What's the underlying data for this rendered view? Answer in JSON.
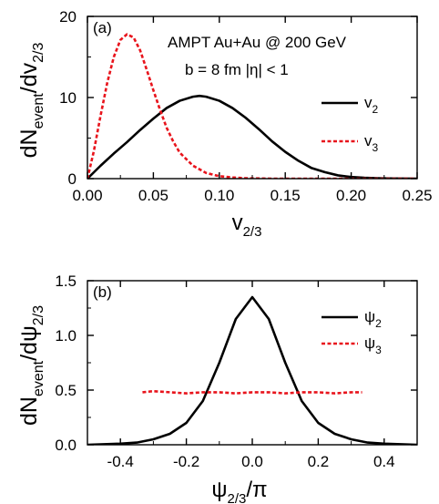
{
  "chart_data": [
    {
      "panel_label": "(a)",
      "type": "line",
      "annotations": [
        "AMPT  Au+Au @ 200 GeV",
        "b = 8 fm  |η| < 1"
      ],
      "xlabel": {
        "main": "v",
        "sub": "2/3"
      },
      "ylabel": {
        "main": "dN",
        "sub1": "event",
        "mid": "/dv",
        "sub2": "2/3"
      },
      "xlim": [
        0,
        0.25
      ],
      "ylim": [
        0,
        20
      ],
      "xticks": [
        0,
        0.05,
        0.1,
        0.15,
        0.2,
        0.25
      ],
      "xtick_labels": [
        "0.00",
        "0.05",
        "0.10",
        "0.15",
        "0.20",
        "0.25"
      ],
      "yticks": [
        0,
        10,
        20
      ],
      "ytick_labels": [
        "0",
        "10",
        "20"
      ],
      "legend": [
        {
          "main": "v",
          "sub": "2",
          "style": "solid",
          "color": "#000000"
        },
        {
          "main": "v",
          "sub": "3",
          "style": "dashed",
          "color": "#e8141c"
        }
      ],
      "series": [
        {
          "style": "solid",
          "color": "#000000",
          "x": [
            0,
            0.005,
            0.01,
            0.02,
            0.03,
            0.04,
            0.05,
            0.06,
            0.07,
            0.08,
            0.085,
            0.09,
            0.1,
            0.11,
            0.12,
            0.13,
            0.14,
            0.15,
            0.16,
            0.17,
            0.18,
            0.19,
            0.2,
            0.21,
            0.22,
            0.23,
            0.25
          ],
          "y": [
            0,
            0.8,
            1.6,
            3.1,
            4.5,
            6.0,
            7.4,
            8.7,
            9.6,
            10.1,
            10.2,
            10.1,
            9.6,
            8.7,
            7.5,
            6.1,
            4.6,
            3.3,
            2.2,
            1.3,
            0.8,
            0.4,
            0.2,
            0.1,
            0.05,
            0.02,
            0.0
          ]
        },
        {
          "style": "dashed",
          "color": "#e8141c",
          "x": [
            0,
            0.005,
            0.01,
            0.015,
            0.02,
            0.025,
            0.03,
            0.035,
            0.04,
            0.045,
            0.05,
            0.055,
            0.06,
            0.065,
            0.07,
            0.08,
            0.09,
            0.1,
            0.11,
            0.12,
            0.14,
            0.16,
            0.2,
            0.25
          ],
          "y": [
            0,
            3.5,
            7.8,
            11.8,
            15.0,
            17.1,
            17.8,
            17.4,
            15.8,
            13.4,
            10.9,
            8.5,
            6.3,
            4.6,
            3.2,
            1.6,
            0.7,
            0.3,
            0.15,
            0.05,
            0,
            0,
            0,
            0
          ]
        }
      ]
    },
    {
      "panel_label": "(b)",
      "type": "line",
      "xlabel": {
        "main": "ψ",
        "sub": "2/3",
        "tail": "/π"
      },
      "ylabel": {
        "main": "dN",
        "sub1": "event",
        "mid": "/dψ",
        "sub2": "2/3"
      },
      "xlim": [
        -0.5,
        0.5
      ],
      "ylim": [
        0,
        1.5
      ],
      "xticks": [
        -0.4,
        -0.2,
        0,
        0.2,
        0.4
      ],
      "xtick_labels": [
        "-0.4",
        "-0.2",
        "0.0",
        "0.2",
        "0.4"
      ],
      "yticks": [
        0,
        0.5,
        1.0,
        1.5
      ],
      "ytick_labels": [
        "0.0",
        "0.5",
        "1.0",
        "1.5"
      ],
      "legend": [
        {
          "main": "ψ",
          "sub": "2",
          "style": "solid",
          "color": "#000000"
        },
        {
          "main": "ψ",
          "sub": "3",
          "style": "dashed",
          "color": "#e8141c"
        }
      ],
      "series": [
        {
          "style": "solid",
          "color": "#000000",
          "x": [
            -0.5,
            -0.45,
            -0.4,
            -0.35,
            -0.3,
            -0.25,
            -0.2,
            -0.15,
            -0.1,
            -0.05,
            0,
            0.05,
            0.1,
            0.15,
            0.2,
            0.25,
            0.3,
            0.35,
            0.4,
            0.45,
            0.5
          ],
          "y": [
            0.0,
            0.005,
            0.01,
            0.02,
            0.05,
            0.1,
            0.2,
            0.4,
            0.75,
            1.15,
            1.35,
            1.15,
            0.75,
            0.4,
            0.2,
            0.1,
            0.05,
            0.02,
            0.01,
            0.005,
            0.0
          ]
        },
        {
          "style": "dashed",
          "color": "#e8141c",
          "x": [
            -0.333,
            -0.3,
            -0.25,
            -0.2,
            -0.15,
            -0.1,
            -0.05,
            0,
            0.05,
            0.1,
            0.15,
            0.2,
            0.25,
            0.3,
            0.333
          ],
          "y": [
            0.48,
            0.49,
            0.48,
            0.47,
            0.48,
            0.48,
            0.47,
            0.48,
            0.48,
            0.47,
            0.48,
            0.48,
            0.47,
            0.48,
            0.48
          ]
        }
      ]
    }
  ]
}
